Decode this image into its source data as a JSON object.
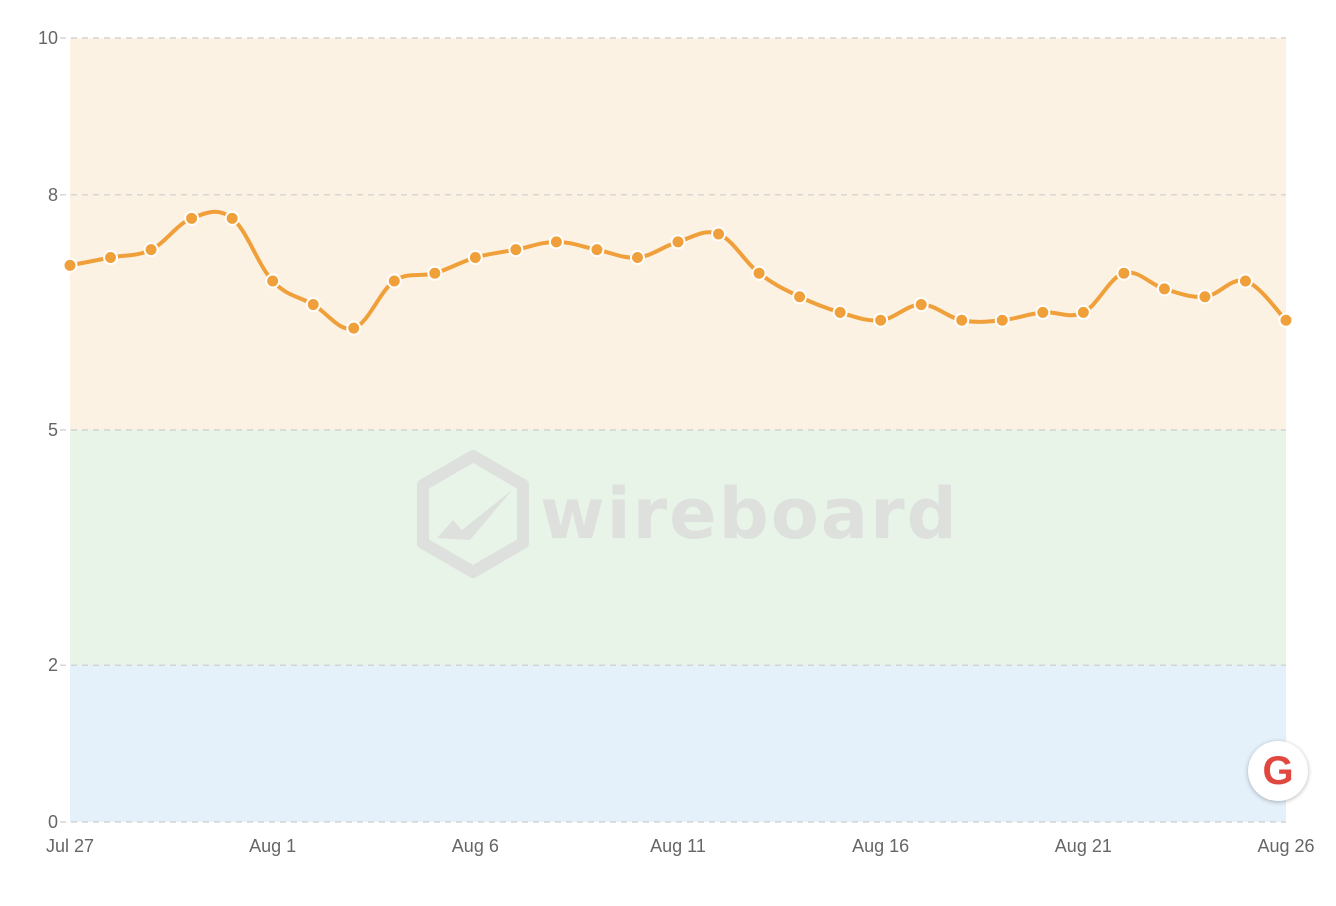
{
  "chart_data": {
    "type": "area",
    "x": [
      "Jul 27",
      "Jul 28",
      "Jul 29",
      "Jul 30",
      "Jul 31",
      "Aug 1",
      "Aug 2",
      "Aug 3",
      "Aug 4",
      "Aug 5",
      "Aug 6",
      "Aug 7",
      "Aug 8",
      "Aug 9",
      "Aug 10",
      "Aug 11",
      "Aug 12",
      "Aug 13",
      "Aug 14",
      "Aug 15",
      "Aug 16",
      "Aug 17",
      "Aug 18",
      "Aug 19",
      "Aug 20",
      "Aug 21",
      "Aug 22",
      "Aug 23",
      "Aug 24",
      "Aug 25",
      "Aug 26"
    ],
    "x_tick_labels": [
      "Jul 27",
      "Aug 1",
      "Aug 6",
      "Aug 11",
      "Aug 16",
      "Aug 21",
      "Aug 26"
    ],
    "series": [
      {
        "values": [
          7.1,
          7.2,
          7.3,
          7.7,
          7.7,
          6.9,
          6.6,
          6.3,
          6.9,
          7.0,
          7.2,
          7.3,
          7.4,
          7.3,
          7.2,
          7.4,
          7.5,
          7.0,
          6.7,
          6.5,
          6.4,
          6.6,
          6.4,
          6.4,
          6.5,
          6.5,
          7.0,
          6.8,
          6.7,
          6.9,
          6.4
        ]
      }
    ],
    "y_ticks": [
      0,
      2,
      5,
      8,
      10
    ],
    "ylim": [
      0,
      10
    ],
    "bands": [
      {
        "from": 0,
        "to": 2,
        "color": "#e4f0fa"
      },
      {
        "from": 2,
        "to": 5,
        "color": "#e8f4e8"
      },
      {
        "from": 5,
        "to": 10,
        "color": "#fcf2e4"
      }
    ],
    "line_color": "#f0a03a",
    "grid": true,
    "title": "",
    "xlabel": "",
    "ylabel": ""
  },
  "watermark": {
    "text": "wireboard",
    "color": "#dedede"
  },
  "badge": {
    "letter": "G",
    "color": "#e0473f",
    "icon": "google-icon"
  }
}
